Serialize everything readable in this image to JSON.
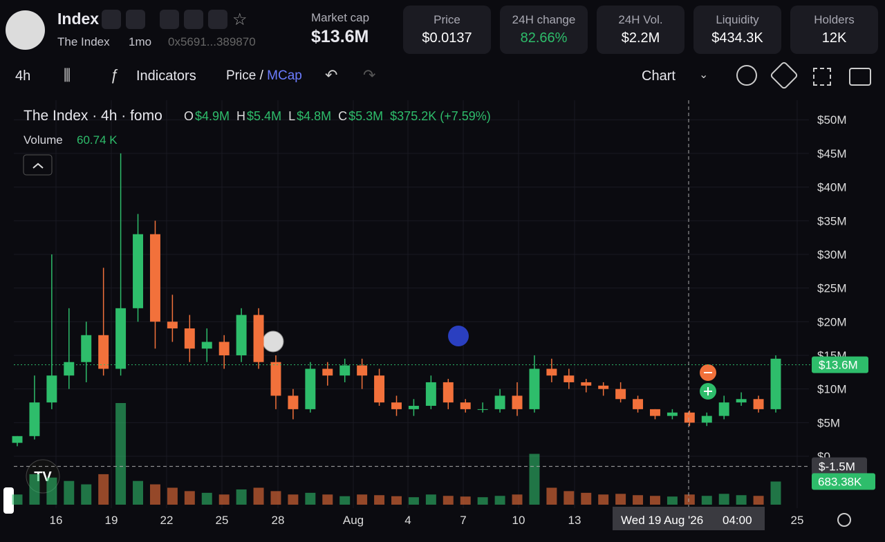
{
  "header": {
    "name": "Index",
    "symbol_name": "The Index",
    "age": "1mo",
    "address": "0x5691...389870",
    "market_cap_label": "Market cap",
    "market_cap": "$13.6M",
    "stats": [
      {
        "label": "Price",
        "value": "$0.0137"
      },
      {
        "label": "24H change",
        "value": "82.66%"
      },
      {
        "label": "24H Vol.",
        "value": "$2.2M"
      },
      {
        "label": "Liquidity",
        "value": "$434.3K"
      },
      {
        "label": "Holders",
        "value": "12K"
      }
    ]
  },
  "toolbar": {
    "interval": "4h",
    "indicators": "Indicators",
    "price": "Price",
    "separator": "/",
    "mcap": "MCap",
    "chart": "Chart"
  },
  "chart_data": {
    "type": "candlestick",
    "title": "The Index · 4h · fomo",
    "ohlc_legend": [
      {
        "key": "O",
        "value": "$4.9M"
      },
      {
        "key": "H",
        "value": "$5.4M"
      },
      {
        "key": "L",
        "value": "$4.8M"
      },
      {
        "key": "C",
        "value": "$5.3M"
      }
    ],
    "change": "$375.2K (+7.59%)",
    "volume_label": "Volume",
    "volume_value": "60.74 K",
    "up_color": "#2ebd6b",
    "down_color": "#f2713b",
    "grid": true,
    "ylim": [
      -7.7,
      52.9
    ],
    "yticks": [
      {
        "value": 0,
        "label": "$0"
      },
      {
        "value": 5,
        "label": "$5M"
      },
      {
        "value": 10,
        "label": "$10M"
      },
      {
        "value": 15,
        "label": "$15M"
      },
      {
        "value": 20,
        "label": "$20M"
      },
      {
        "value": 25,
        "label": "$25M"
      },
      {
        "value": 30,
        "label": "$30M"
      },
      {
        "value": 35,
        "label": "$35M"
      },
      {
        "value": 40,
        "label": "$40M"
      },
      {
        "value": 45,
        "label": "$45M"
      },
      {
        "value": 50,
        "label": "$50M"
      }
    ],
    "x_labels": [
      "16",
      "19",
      "22",
      "25",
      "28",
      "Aug",
      "4",
      "7",
      "10",
      "13",
      "25"
    ],
    "crosshair_date": "Wed 19 Aug '26",
    "crosshair_time": "04:00",
    "price_line": {
      "value": 13.6,
      "label": "$13.6M"
    },
    "crosshair": {
      "value": -1.5,
      "label": "$-1.5M"
    },
    "last_volume": {
      "value": 683.38,
      "label": "683.38K"
    },
    "open": [
      2,
      3,
      8,
      12,
      14,
      18,
      13,
      22,
      33,
      20,
      19,
      16,
      17,
      15,
      21,
      14,
      9,
      7,
      13,
      12,
      13.5,
      12,
      8,
      7,
      7.5,
      11,
      8,
      7,
      7,
      9,
      7,
      13,
      12,
      11,
      10.5,
      10,
      8.5,
      7,
      6,
      6.5,
      5,
      6,
      8,
      8.5,
      7
    ],
    "high": [
      3,
      12,
      30,
      22,
      20,
      28,
      45,
      36,
      35,
      24,
      21,
      19,
      18,
      22,
      22,
      15,
      10,
      14,
      14,
      14.5,
      14.5,
      13,
      9,
      8.5,
      12,
      11.5,
      8.5,
      8,
      10,
      11,
      15,
      14.5,
      13,
      11.5,
      11,
      11,
      9,
      7,
      7,
      6.8,
      6.5,
      9,
      9.5,
      9,
      15
    ],
    "low": [
      1.5,
      2.5,
      7,
      10,
      11,
      12,
      12,
      20,
      16,
      17,
      14,
      14,
      13,
      14,
      13,
      7,
      5.5,
      6.5,
      10.5,
      11,
      10,
      7.5,
      6,
      6,
      7,
      7,
      6.5,
      6.5,
      6.5,
      6,
      6.5,
      11,
      10,
      9.5,
      9,
      8,
      6.5,
      5.5,
      5.5,
      4.5,
      4.5,
      5.5,
      7.5,
      6.5,
      6.5
    ],
    "close": [
      3,
      8,
      12,
      14,
      18,
      13,
      22,
      33,
      20,
      19,
      16,
      17,
      15,
      21,
      14,
      9,
      7,
      13,
      12,
      13.5,
      12,
      8,
      7,
      7.5,
      11,
      8,
      7,
      7,
      9,
      7,
      13,
      12,
      11,
      10.5,
      10,
      8.5,
      7,
      6,
      6.5,
      5,
      6,
      8,
      8.5,
      7,
      14.5
    ],
    "volume": [
      300,
      900,
      800,
      700,
      600,
      900,
      3000,
      700,
      600,
      500,
      400,
      350,
      300,
      450,
      500,
      400,
      300,
      350,
      300,
      250,
      300,
      280,
      250,
      220,
      300,
      260,
      240,
      220,
      260,
      300,
      1500,
      500,
      400,
      350,
      300,
      320,
      280,
      260,
      240,
      300,
      260,
      320,
      280,
      260,
      683.38
    ]
  }
}
